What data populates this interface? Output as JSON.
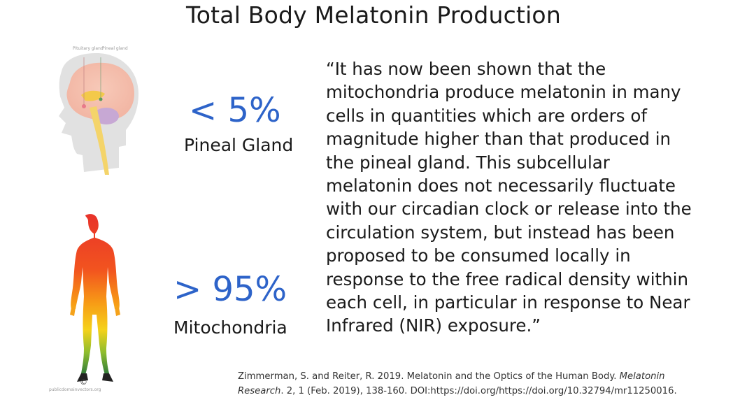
{
  "slide": {
    "title": "Total Body Melatonin Production"
  },
  "head_figure": {
    "label_left": "Pituitary gland",
    "label_right": "Pineal gland"
  },
  "stats": [
    {
      "value": "< 5%",
      "label": "Pineal Gland"
    },
    {
      "value": "> 95%",
      "label": "Mitochondria"
    }
  ],
  "body_figure": {
    "copyright": "©",
    "credit": "publicdomainvectors.org"
  },
  "quote_lines": [
    "“It has now been shown that the",
    "mitochondria produce melatonin in many",
    "cells in quantities which are orders of",
    "magnitude higher than that produced in",
    "the pineal gland. This subcellular",
    "melatonin does not necessarily fluctuate",
    "with our circadian clock or release into the",
    "circulation system, but instead has been",
    "proposed to be consumed locally in",
    "response to the free radical density within",
    "each cell, in particular in response to Near",
    "Infrared (NIR) exposure.”"
  ],
  "citation": {
    "line1_text": "Zimmerman, S. and Reiter, R. 2019. Melatonin and the Optics of the Human Body. ",
    "line1_italic": "Melatonin",
    "line2_italic": "Research",
    "line2_text": ". 2, 1 (Feb. 2019), 138-160. DOI:https://doi.org/https://doi.org/10.32794/mr11250016."
  },
  "colors": {
    "stat_blue": "#2d63c9",
    "text": "#1a1a1a"
  }
}
